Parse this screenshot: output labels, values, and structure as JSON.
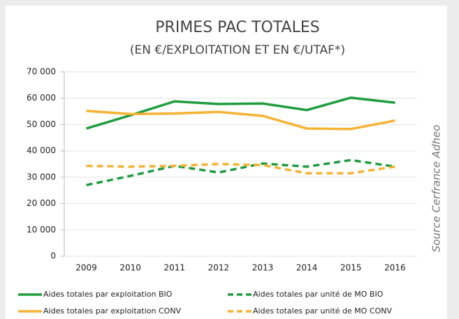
{
  "chart_data": {
    "type": "line",
    "title": "PRIMES PAC TOTALES",
    "subtitle": "(EN €/EXPLOITATION ET EN €/UTAF*)",
    "source": "Source Cerfrance Adheo",
    "categories": [
      "2009",
      "2010",
      "2011",
      "2012",
      "2013",
      "2014",
      "2015",
      "2016"
    ],
    "series": [
      {
        "name": "Aides totales par exploitation BIO",
        "color": "#1f9c3f",
        "dashed": false,
        "values": [
          48500,
          53500,
          58800,
          57800,
          58000,
          55500,
          60200,
          58300
        ]
      },
      {
        "name": "Aides totales par unité de MO BIO",
        "color": "#1f9c3f",
        "dashed": true,
        "values": [
          27000,
          30500,
          34300,
          31800,
          35200,
          34000,
          36500,
          34000
        ]
      },
      {
        "name": "Aides totales par exploitation CONV",
        "color": "#f5b335",
        "dashed": false,
        "values": [
          55200,
          54000,
          54200,
          54800,
          53300,
          48500,
          48300,
          51500
        ]
      },
      {
        "name": "Aides totales par unité de MO CONV",
        "color": "#f5b335",
        "dashed": true,
        "values": [
          34300,
          34000,
          34300,
          35000,
          34600,
          31500,
          31500,
          34000
        ]
      }
    ],
    "ylim": [
      0,
      70000
    ],
    "yticks": [
      0,
      {
        "value": 10000,
        "label": "10 000"
      },
      {
        "value": 20000,
        "label": "20 000"
      },
      {
        "value": 30000,
        "label": "30 000"
      },
      {
        "value": 40000,
        "label": "40 000"
      },
      {
        "value": 50000,
        "label": "50 000"
      },
      {
        "value": 60000,
        "label": "60 000"
      },
      {
        "value": 70000,
        "label": "70 000"
      }
    ],
    "grid": true
  }
}
